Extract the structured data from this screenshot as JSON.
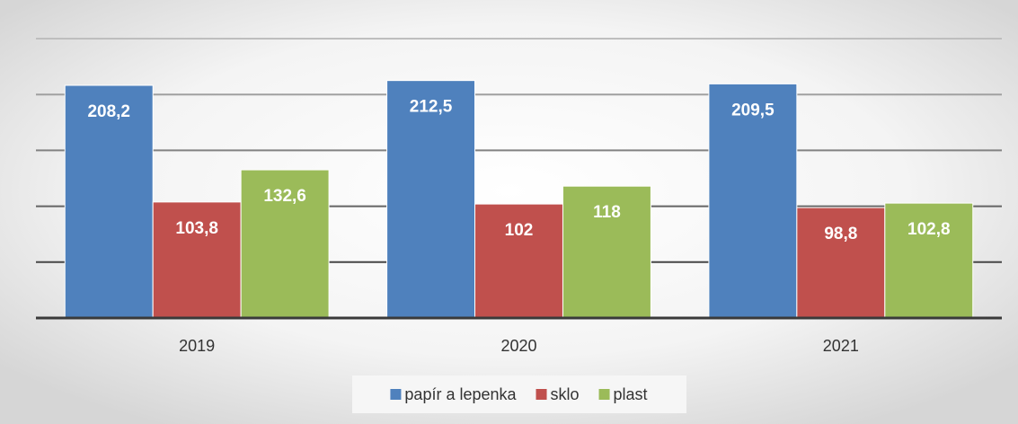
{
  "chart_data": {
    "type": "bar",
    "categories": [
      "2019",
      "2020",
      "2021"
    ],
    "series": [
      {
        "name": "papír a lepenka",
        "color": "#4f81bd",
        "values": [
          208.2,
          212.5,
          209.5
        ],
        "value_labels": [
          "208,2",
          "212,5",
          "209,5"
        ]
      },
      {
        "name": "sklo",
        "color": "#c0504d",
        "values": [
          103.8,
          102,
          98.8
        ],
        "value_labels": [
          "103,8",
          "102",
          "98,8"
        ]
      },
      {
        "name": "plast",
        "color": "#9bbb59",
        "values": [
          132.6,
          118,
          102.8
        ],
        "value_labels": [
          "132,6",
          "118",
          "102,8"
        ]
      }
    ],
    "ylim": [
      0,
      250
    ],
    "yticks": [
      0,
      50,
      100,
      150,
      200,
      250
    ],
    "grid": true,
    "legend": "bottom"
  }
}
